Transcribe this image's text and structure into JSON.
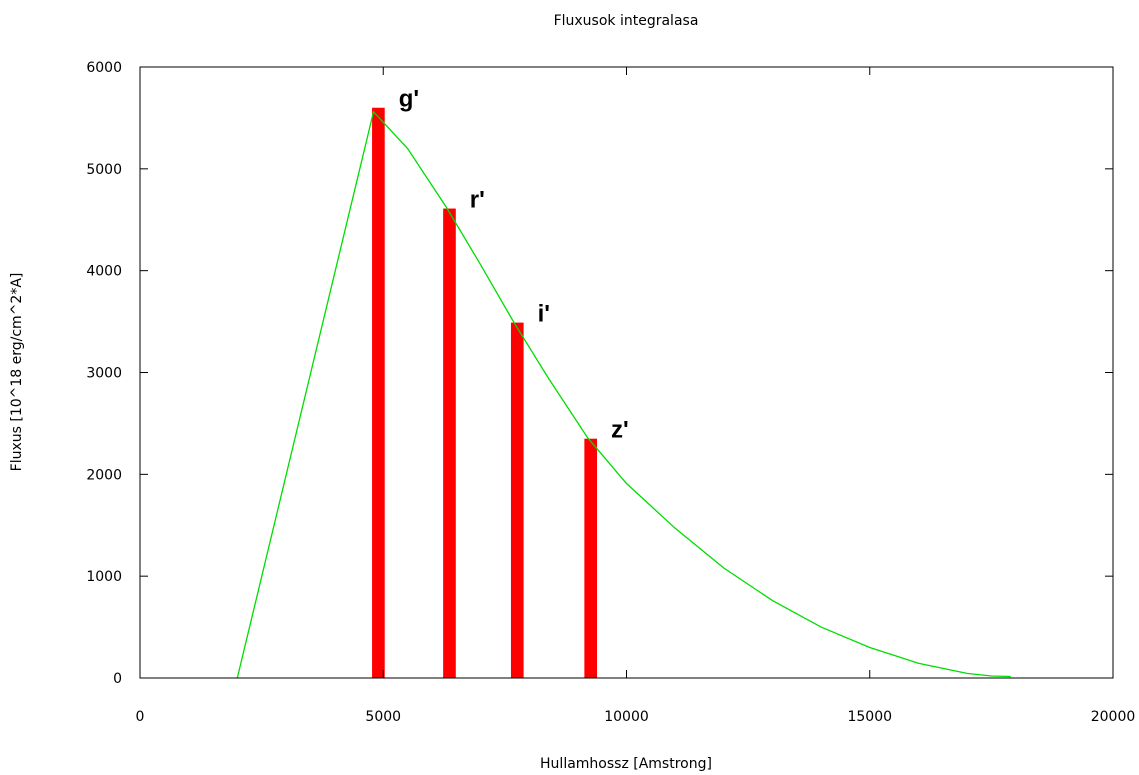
{
  "chart_data": {
    "type": "bar",
    "title": "Fluxusok integralasa",
    "xlabel": "Hullamhossz [Amstrong]",
    "ylabel": "Fluxus [10^18 erg/cm^2*A]",
    "xlim": [
      0,
      20000
    ],
    "ylim": [
      0,
      6000
    ],
    "xticks": [
      0,
      5000,
      10000,
      15000,
      20000
    ],
    "yticks": [
      0,
      1000,
      2000,
      3000,
      4000,
      5000,
      6000
    ],
    "grid": false,
    "bars": [
      {
        "label": "g'",
        "x": 4770,
        "width": 260,
        "value": 5600
      },
      {
        "label": "r'",
        "x": 6231,
        "width": 260,
        "value": 4610
      },
      {
        "label": "i'",
        "x": 7625,
        "width": 260,
        "value": 3490
      },
      {
        "label": "z'",
        "x": 9134,
        "width": 260,
        "value": 2350
      }
    ],
    "series": [
      {
        "type": "line",
        "color": "#00dd00",
        "x": [
          2000,
          4800,
          5500,
          6300,
          7000,
          7700,
          8400,
          9200,
          10000,
          11000,
          12000,
          13000,
          14000,
          15000,
          16000,
          17000,
          17500,
          17900
        ],
        "values": [
          0,
          5560,
          5200,
          4620,
          4060,
          3480,
          2940,
          2360,
          1910,
          1470,
          1080,
          760,
          500,
          300,
          145,
          45,
          20,
          15
        ]
      }
    ],
    "bar_color": "#ff0000"
  }
}
